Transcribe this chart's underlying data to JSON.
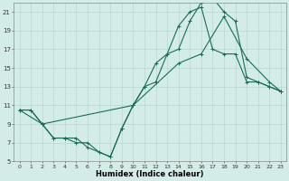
{
  "xlabel": "Humidex (Indice chaleur)",
  "bg_color": "#d4ece8",
  "grid_color": "#b8d8d0",
  "line_color": "#1a6b5a",
  "xlim": [
    -0.5,
    23.5
  ],
  "ylim": [
    5,
    22
  ],
  "xticks": [
    0,
    1,
    2,
    3,
    4,
    5,
    6,
    7,
    8,
    9,
    10,
    11,
    12,
    13,
    14,
    15,
    16,
    17,
    18,
    19,
    20,
    21,
    22,
    23
  ],
  "yticks": [
    5,
    7,
    9,
    11,
    13,
    15,
    17,
    19,
    21
  ],
  "series": [
    {
      "x": [
        0,
        1,
        2,
        3,
        4,
        5,
        6,
        7,
        8,
        9,
        10,
        11,
        12,
        13,
        14,
        15,
        16,
        17,
        18,
        19,
        20,
        21,
        22,
        23
      ],
      "y": [
        10.5,
        10.5,
        9.0,
        7.5,
        7.5,
        7.5,
        6.5,
        6.0,
        5.5,
        8.5,
        11.0,
        13.0,
        15.5,
        16.5,
        17.0,
        20.0,
        22.0,
        22.5,
        21.0,
        20.0,
        14.0,
        13.5,
        13.0,
        12.5
      ]
    },
    {
      "x": [
        0,
        2,
        10,
        14,
        16,
        18,
        20,
        22,
        23
      ],
      "y": [
        10.5,
        9.0,
        11.0,
        15.5,
        16.5,
        20.5,
        16.0,
        13.5,
        12.5
      ]
    },
    {
      "x": [
        0,
        1,
        2,
        3,
        4,
        5,
        6,
        7,
        8,
        9,
        10,
        11,
        12,
        13,
        14,
        15,
        16,
        17,
        18,
        19,
        20,
        21,
        22,
        23
      ],
      "y": [
        10.5,
        10.5,
        9.0,
        7.5,
        7.5,
        7.0,
        7.0,
        6.0,
        5.5,
        8.5,
        11.0,
        13.0,
        13.5,
        16.5,
        19.5,
        21.0,
        21.5,
        17.0,
        16.5,
        16.5,
        13.5,
        13.5,
        13.0,
        12.5
      ]
    }
  ]
}
